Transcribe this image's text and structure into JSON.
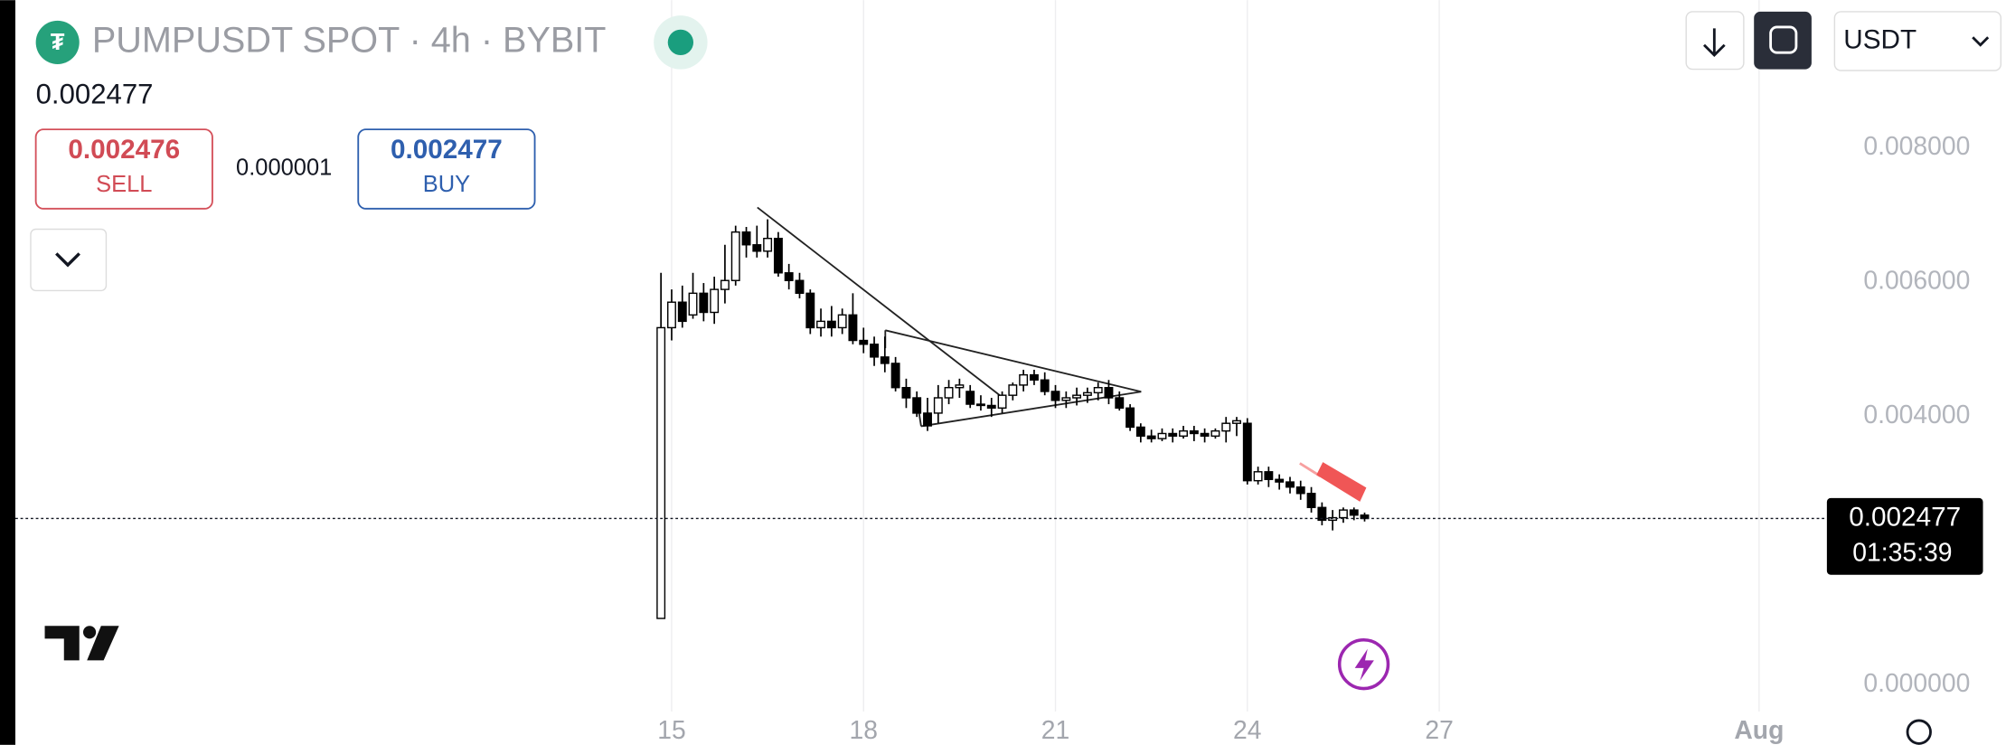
{
  "header": {
    "title": "PUMPUSDT SPOT · 4h · BYBIT",
    "price": "0.002477",
    "sell_price": "0.002476",
    "sell_label": "SELL",
    "spread": "0.000001",
    "buy_price": "0.002477",
    "buy_label": "BUY",
    "currency": "USDT"
  },
  "chart_data": {
    "type": "candlestick",
    "x": [
      14.833,
      15,
      15.167,
      15.333,
      15.5,
      15.667,
      15.833,
      16,
      16.167,
      16.333,
      16.5,
      16.667,
      16.833,
      17,
      17.167,
      17.333,
      17.5,
      17.667,
      17.833,
      18,
      18.167,
      18.333,
      18.5,
      18.667,
      18.833,
      19,
      19.167,
      19.333,
      19.5,
      19.667,
      19.833,
      20,
      20.167,
      20.333,
      20.5,
      20.667,
      20.833,
      21,
      21.167,
      21.333,
      21.5,
      21.667,
      21.833,
      22,
      22.167,
      22.333,
      22.5,
      22.667,
      22.833,
      23,
      23.167,
      23.333,
      23.5,
      23.667,
      23.833,
      24,
      24.167,
      24.333,
      24.5,
      24.667,
      24.833,
      25,
      25.167,
      25.333,
      25.5,
      25.667,
      25.833
    ],
    "open": [
      0.000988,
      0.00532,
      0.0057,
      0.00551,
      0.005833,
      0.005548,
      0.00589,
      0.006023,
      0.006745,
      0.006555,
      0.00646,
      0.00665,
      0.006137,
      0.006023,
      0.005833,
      0.00532,
      0.005415,
      0.00532,
      0.00551,
      0.00513,
      0.005073,
      0.004883,
      0.004788,
      0.004427,
      0.004275,
      0.004047,
      0.004047,
      0.004275,
      0.004427,
      0.00437,
      0.00418,
      0.004161,
      0.004123,
      0.004313,
      0.004465,
      0.004617,
      0.004541,
      0.00437,
      0.004237,
      0.004275,
      0.004313,
      0.004351,
      0.004427,
      0.004275,
      0.004123,
      0.003838,
      0.003705,
      0.003667,
      0.003743,
      0.003705,
      0.003781,
      0.003743,
      0.003705,
      0.003781,
      0.003895,
      0.003895,
      0.00304,
      0.003173,
      0.003059,
      0.003021,
      0.002945,
      0.00285,
      0.002641,
      0.002451,
      0.002489,
      0.002603,
      0.002527
    ],
    "high": [
      0.006137,
      0.00589,
      0.005947,
      0.006137,
      0.005985,
      0.00608,
      0.006555,
      0.00684,
      0.006821,
      0.00684,
      0.006935,
      0.006745,
      0.00627,
      0.006137,
      0.00589,
      0.005605,
      0.005643,
      0.005605,
      0.005833,
      0.00532,
      0.005187,
      0.005187,
      0.004883,
      0.00456,
      0.00437,
      0.004275,
      0.004465,
      0.004541,
      0.00456,
      0.004465,
      0.004313,
      0.004275,
      0.00437,
      0.004503,
      0.004693,
      0.004693,
      0.004655,
      0.004465,
      0.00437,
      0.004427,
      0.004427,
      0.004503,
      0.004541,
      0.00437,
      0.00418,
      0.003895,
      0.0038,
      0.003819,
      0.003819,
      0.003857,
      0.003857,
      0.003819,
      0.003819,
      0.00399,
      0.00399,
      0.003971,
      0.003249,
      0.003249,
      0.003135,
      0.003097,
      0.00304,
      0.002945,
      0.002717,
      0.002603,
      0.002641,
      0.002641,
      0.002565
    ],
    "low": [
      0.000988,
      0.00513,
      0.00532,
      0.005453,
      0.005415,
      0.005377,
      0.005681,
      0.005947,
      0.006365,
      0.006365,
      0.006365,
      0.00608,
      0.00589,
      0.005757,
      0.005225,
      0.005187,
      0.005187,
      0.005225,
      0.005073,
      0.00494,
      0.00475,
      0.004655,
      0.00437,
      0.004123,
      0.00399,
      0.003781,
      0.003895,
      0.00418,
      0.004275,
      0.004123,
      0.004085,
      0.00399,
      0.004047,
      0.004237,
      0.00437,
      0.004465,
      0.004313,
      0.004123,
      0.004123,
      0.004161,
      0.004199,
      0.004237,
      0.00418,
      0.004085,
      0.003781,
      0.00361,
      0.00361,
      0.003629,
      0.00361,
      0.003667,
      0.003629,
      0.00361,
      0.003667,
      0.00361,
      0.003705,
      0.002983,
      0.002983,
      0.002945,
      0.002907,
      0.00285,
      0.002755,
      0.002565,
      0.002375,
      0.002299,
      0.002413,
      0.002451,
      0.002432
    ],
    "close": [
      0.00532,
      0.0057,
      0.005415,
      0.005833,
      0.005548,
      0.00589,
      0.006023,
      0.006745,
      0.006555,
      0.00646,
      0.00665,
      0.006137,
      0.006023,
      0.005833,
      0.00532,
      0.005415,
      0.00532,
      0.00551,
      0.00513,
      0.005073,
      0.004883,
      0.004788,
      0.004427,
      0.004275,
      0.004047,
      0.003857,
      0.004275,
      0.004427,
      0.004465,
      0.00418,
      0.004161,
      0.004123,
      0.004313,
      0.004465,
      0.004617,
      0.004541,
      0.00437,
      0.004237,
      0.004275,
      0.004313,
      0.004351,
      0.004427,
      0.004275,
      0.004123,
      0.003838,
      0.003705,
      0.003667,
      0.003743,
      0.003705,
      0.003781,
      0.003743,
      0.003705,
      0.003781,
      0.003895,
      0.003933,
      0.00304,
      0.003173,
      0.003059,
      0.003021,
      0.002945,
      0.00285,
      0.002641,
      0.002451,
      0.002489,
      0.002603,
      0.002527,
      0.002477
    ],
    "up_color": "#ffffff",
    "down_color": "#000000",
    "wick_color": "#000000",
    "xlim": [
      4.74,
      33.1
    ],
    "xticks": [
      15,
      18,
      21,
      24,
      27,
      {
        "value": 32,
        "label": "Aug"
      }
    ],
    "ylim": [
      -0.0004,
      0.0102
    ],
    "yticks": [
      {
        "value": 0,
        "label": "0.000000"
      },
      {
        "value": 0.004,
        "label": "0.004000"
      },
      {
        "value": 0.006,
        "label": "0.006000"
      },
      {
        "value": 0.008,
        "label": "0.008000"
      }
    ],
    "xgrid": true,
    "last_price": {
      "value": 0.002477,
      "label": "0.002477"
    },
    "countdown": "01:35:39"
  }
}
